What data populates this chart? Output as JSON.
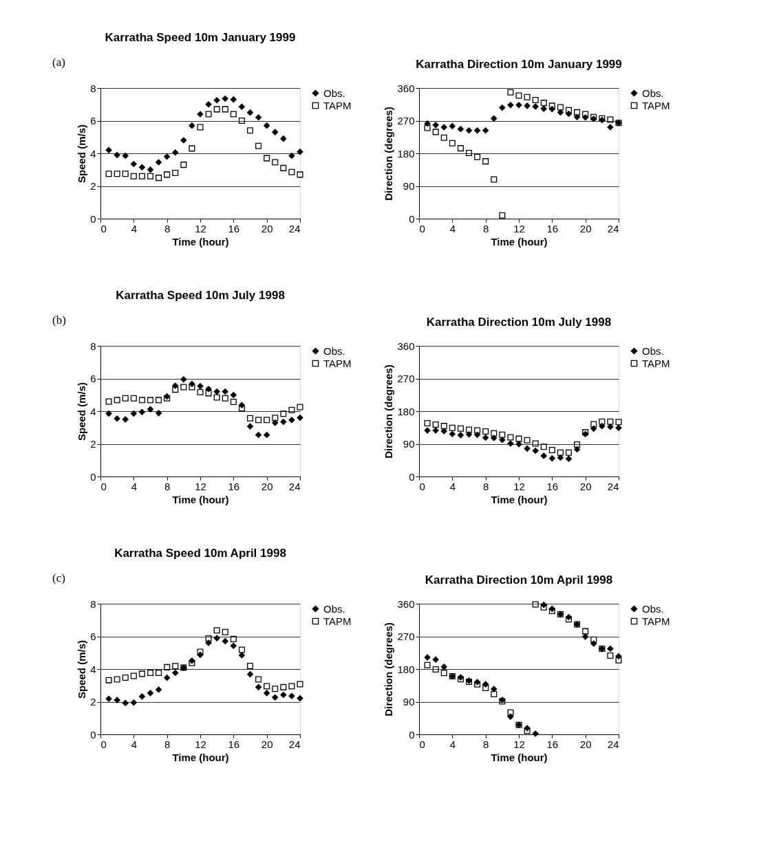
{
  "chart_data": [
    {
      "type": "scatter",
      "title": "Karratha Speed  10m  January 1999",
      "xlabel": "Time (hour)",
      "ylabel": "Speed (m/s)",
      "annotations": [
        "(a)"
      ],
      "x": [
        1,
        2,
        3,
        4,
        5,
        6,
        7,
        8,
        9,
        10,
        11,
        12,
        13,
        14,
        15,
        16,
        17,
        18,
        19,
        20,
        21,
        22,
        23,
        24
      ],
      "xlim": [
        0,
        24
      ],
      "xticks": [
        0,
        4,
        8,
        12,
        16,
        20,
        24
      ],
      "ylim": [
        0,
        8
      ],
      "yticks": [
        0,
        2,
        4,
        6,
        8
      ],
      "grid": "y",
      "legend": "right",
      "series": [
        {
          "name": "Obs.",
          "color": "#000000",
          "marker": "diamond",
          "values": [
            4.2,
            3.9,
            3.85,
            3.35,
            3.15,
            3.0,
            3.45,
            3.8,
            4.05,
            4.8,
            5.7,
            6.4,
            7.0,
            7.25,
            7.35,
            7.3,
            6.85,
            6.5,
            6.2,
            5.7,
            5.3,
            4.9,
            3.85,
            4.1
          ]
        },
        {
          "name": "TAPM",
          "color": "#000000",
          "marker": "square",
          "values": [
            2.75,
            2.75,
            2.75,
            2.6,
            2.6,
            2.6,
            2.5,
            2.7,
            2.8,
            3.3,
            4.3,
            5.6,
            6.4,
            6.7,
            6.7,
            6.4,
            6.0,
            5.4,
            4.45,
            3.7,
            3.45,
            3.1,
            2.85,
            2.7
          ]
        }
      ]
    },
    {
      "type": "scatter",
      "title": "Karratha Direction  10m  January 1999",
      "xlabel": "Time (hour)",
      "ylabel": "Direction (degrees)",
      "x": [
        1,
        2,
        3,
        4,
        5,
        6,
        7,
        8,
        9,
        10,
        11,
        12,
        13,
        14,
        15,
        16,
        17,
        18,
        19,
        20,
        21,
        22,
        23,
        24
      ],
      "xlim": [
        0,
        24
      ],
      "xticks": [
        0,
        4,
        8,
        12,
        16,
        20,
        24
      ],
      "ylim": [
        0,
        360
      ],
      "yticks": [
        0,
        90,
        180,
        270,
        360
      ],
      "grid": "y",
      "legend": "right",
      "series": [
        {
          "name": "Obs.",
          "color": "#000000",
          "marker": "diamond",
          "values": [
            262,
            258,
            252,
            255,
            247,
            243,
            243,
            243,
            276,
            306,
            313,
            313,
            311,
            309,
            303,
            302,
            293,
            289,
            280,
            279,
            275,
            272,
            252,
            264
          ]
        },
        {
          "name": "TAPM",
          "color": "#000000",
          "marker": "square",
          "values": [
            250,
            239,
            223,
            208,
            194,
            181,
            170,
            158,
            108,
            9,
            348,
            339,
            335,
            327,
            319,
            311,
            307,
            299,
            293,
            288,
            280,
            276,
            273,
            264
          ]
        }
      ]
    },
    {
      "type": "scatter",
      "title": "Karratha Speed  10m    July 1998",
      "xlabel": "Time (hour)",
      "ylabel": "Speed (m/s)",
      "annotations": [
        "(b)"
      ],
      "x": [
        1,
        2,
        3,
        4,
        5,
        6,
        7,
        8,
        9,
        10,
        11,
        12,
        13,
        14,
        15,
        16,
        17,
        18,
        19,
        20,
        21,
        22,
        23,
        24
      ],
      "xlim": [
        0,
        24
      ],
      "xticks": [
        0,
        4,
        8,
        12,
        16,
        20,
        24
      ],
      "ylim": [
        0,
        8
      ],
      "yticks": [
        0,
        2,
        4,
        6,
        8
      ],
      "grid": "y",
      "legend": "right",
      "series": [
        {
          "name": "Obs.",
          "color": "#000000",
          "marker": "diamond",
          "values": [
            3.85,
            3.55,
            3.5,
            3.85,
            3.95,
            4.12,
            3.88,
            4.9,
            5.56,
            5.95,
            5.67,
            5.54,
            5.36,
            5.2,
            5.2,
            4.99,
            4.37,
            3.07,
            2.55,
            2.55,
            3.29,
            3.35,
            3.46,
            3.6
          ]
        },
        {
          "name": "TAPM",
          "color": "#000000",
          "marker": "square",
          "values": [
            4.59,
            4.68,
            4.79,
            4.79,
            4.68,
            4.68,
            4.68,
            4.79,
            5.32,
            5.47,
            5.47,
            5.17,
            5.1,
            4.84,
            4.79,
            4.57,
            4.18,
            3.57,
            3.46,
            3.46,
            3.59,
            3.84,
            4.07,
            4.25
          ]
        }
      ]
    },
    {
      "type": "scatter",
      "title": "Karratha Direction  10m    July 1998",
      "xlabel": "Time (hour)",
      "ylabel": "Direction (degrees)",
      "x": [
        1,
        2,
        3,
        4,
        5,
        6,
        7,
        8,
        9,
        10,
        11,
        12,
        13,
        14,
        15,
        16,
        17,
        18,
        19,
        20,
        21,
        22,
        23,
        24
      ],
      "xlim": [
        0,
        24
      ],
      "xticks": [
        0,
        4,
        8,
        12,
        16,
        20,
        24
      ],
      "ylim": [
        0,
        360
      ],
      "yticks": [
        0,
        90,
        180,
        270,
        360
      ],
      "grid": "y",
      "legend": "right",
      "series": [
        {
          "name": "Obs.",
          "color": "#000000",
          "marker": "diamond",
          "values": [
            127,
            127,
            125,
            117,
            114,
            116,
            115,
            107,
            106,
            101,
            91,
            89,
            77,
            71,
            57,
            50,
            52,
            49,
            75,
            117,
            132,
            139,
            137,
            134
          ]
        },
        {
          "name": "TAPM",
          "color": "#000000",
          "marker": "square",
          "values": [
            147,
            143,
            139,
            134,
            132,
            129,
            127,
            124,
            119,
            115,
            108,
            104,
            100,
            91,
            82,
            73,
            66,
            66,
            88,
            122,
            144,
            151,
            151,
            150
          ]
        }
      ]
    },
    {
      "type": "scatter",
      "title": "Karratha Speed  10m    April 1998",
      "xlabel": "Time (hour)",
      "ylabel": "Speed (m/s)",
      "annotations": [
        "(c)"
      ],
      "x": [
        1,
        2,
        3,
        4,
        5,
        6,
        7,
        8,
        9,
        10,
        11,
        12,
        13,
        14,
        15,
        16,
        17,
        18,
        19,
        20,
        21,
        22,
        23,
        24
      ],
      "xlim": [
        0,
        24
      ],
      "xticks": [
        0,
        4,
        8,
        12,
        16,
        20,
        24
      ],
      "ylim": [
        0,
        8
      ],
      "yticks": [
        0,
        2,
        4,
        6,
        8
      ],
      "grid": "y",
      "legend": "right",
      "series": [
        {
          "name": "Obs.",
          "color": "#000000",
          "marker": "diamond",
          "values": [
            2.18,
            2.1,
            1.92,
            1.95,
            2.32,
            2.53,
            2.74,
            3.47,
            3.77,
            4.08,
            4.51,
            4.87,
            5.6,
            5.89,
            5.71,
            5.42,
            4.84,
            3.68,
            2.89,
            2.53,
            2.26,
            2.42,
            2.35,
            2.21
          ]
        },
        {
          "name": "TAPM",
          "color": "#000000",
          "marker": "square",
          "values": [
            3.32,
            3.37,
            3.47,
            3.58,
            3.71,
            3.77,
            3.77,
            4.11,
            4.18,
            4.08,
            4.37,
            5.05,
            5.87,
            6.37,
            6.26,
            5.84,
            5.18,
            4.19,
            3.37,
            2.95,
            2.79,
            2.89,
            2.95,
            3.07
          ]
        }
      ]
    },
    {
      "type": "scatter",
      "title": "Karratha Direction  10m    April 1998",
      "xlabel": "Time (hour)",
      "ylabel": "Direction (degrees)",
      "x": [
        1,
        2,
        3,
        4,
        5,
        6,
        7,
        8,
        9,
        10,
        11,
        12,
        13,
        14,
        15,
        16,
        17,
        18,
        19,
        20,
        21,
        22,
        23,
        24
      ],
      "xlim": [
        0,
        24
      ],
      "xticks": [
        0,
        4,
        8,
        12,
        16,
        20,
        24
      ],
      "ylim": [
        0,
        360
      ],
      "yticks": [
        0,
        90,
        180,
        270,
        360
      ],
      "grid": "y",
      "legend": "right",
      "series": [
        {
          "name": "Obs.",
          "color": "#000000",
          "marker": "diamond",
          "values": [
            212,
            206,
            186,
            160,
            157,
            148,
            144,
            138,
            125,
            95,
            49,
            26,
            17,
            2,
            357,
            346,
            331,
            323,
            303,
            269,
            250,
            236,
            236,
            215
          ]
        },
        {
          "name": "TAPM",
          "color": "#000000",
          "marker": "square",
          "values": [
            191,
            179,
            169,
            160,
            152,
            145,
            138,
            128,
            111,
            91,
            60,
            26,
            10,
            358,
            350,
            340,
            331,
            317,
            303,
            284,
            261,
            236,
            217,
            204
          ]
        }
      ]
    }
  ]
}
